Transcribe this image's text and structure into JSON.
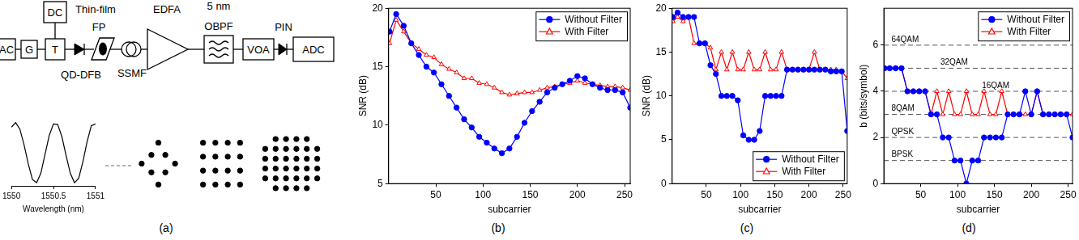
{
  "chart_data": [
    {
      "type": "line",
      "x_label": "Wavelength (nm)",
      "x": [
        1550,
        1550.05,
        1550.1,
        1550.15,
        1550.2,
        1550.25,
        1550.3,
        1550.35,
        1550.4,
        1550.45,
        1550.5,
        1550.55,
        1550.6,
        1550.65,
        1550.7,
        1550.75,
        1550.8,
        1550.85,
        1550.9,
        1550.95,
        1551
      ],
      "values": [
        0.93,
        1.0,
        0.9,
        0.65,
        0.35,
        0.1,
        0.05,
        0.2,
        0.5,
        0.8,
        0.98,
        0.97,
        0.78,
        0.48,
        0.2,
        0.05,
        0.12,
        0.38,
        0.7,
        0.95,
        0.98
      ],
      "color": "#000000",
      "xlim": [
        1550,
        1551
      ],
      "xticks": [
        1550,
        1550.5,
        1551
      ],
      "ylim": [
        0,
        1.1
      ],
      "grid": false,
      "tick_labels": "x"
    },
    {
      "type": "scatter",
      "x": [
        -1,
        1,
        -1,
        1,
        -2.4,
        2.4,
        0,
        0
      ],
      "values": [
        1,
        1,
        -1,
        -1,
        0,
        0,
        2.4,
        -2.4
      ],
      "color": "#000000",
      "marker": "circle",
      "xlim": [
        -3.2,
        3.2
      ],
      "ylim": [
        -3.2,
        3.2
      ],
      "tick_labels": false
    },
    {
      "type": "scatter",
      "x": [
        -3,
        -1,
        1,
        3,
        -3,
        -1,
        1,
        3,
        -3,
        -1,
        1,
        3,
        -3,
        -1,
        1,
        3
      ],
      "values": [
        3,
        3,
        3,
        3,
        1,
        1,
        1,
        1,
        -1,
        -1,
        -1,
        -1,
        -3,
        -3,
        -3,
        -3
      ],
      "color": "#000000",
      "marker": "circle",
      "xlim": [
        -4,
        4
      ],
      "ylim": [
        -4,
        4
      ],
      "tick_labels": false
    },
    {
      "type": "scatter",
      "x": [
        -3,
        -1,
        1,
        3,
        -5,
        -3,
        -1,
        1,
        3,
        5,
        -5,
        -3,
        -1,
        1,
        3,
        5,
        -5,
        -3,
        -1,
        1,
        3,
        5,
        -5,
        -3,
        -1,
        1,
        3,
        5,
        -3,
        -1,
        1,
        3
      ],
      "values": [
        5,
        5,
        5,
        5,
        3,
        3,
        3,
        3,
        3,
        3,
        1,
        1,
        1,
        1,
        1,
        1,
        -1,
        -1,
        -1,
        -1,
        -1,
        -1,
        -3,
        -3,
        -3,
        -3,
        -3,
        -3,
        -5,
        -5,
        -5,
        -5
      ],
      "color": "#000000",
      "marker": "circle",
      "xlim": [
        -6,
        6
      ],
      "ylim": [
        -6,
        6
      ],
      "tick_labels": false
    },
    {
      "type": "line",
      "x_label": "subcarrier",
      "y_label": "SNR (dB)",
      "x": [
        1,
        8,
        16,
        24,
        32,
        40,
        48,
        56,
        64,
        72,
        80,
        88,
        96,
        104,
        112,
        120,
        128,
        136,
        144,
        152,
        160,
        168,
        176,
        184,
        192,
        200,
        208,
        216,
        224,
        232,
        240,
        248,
        256
      ],
      "series": [
        {
          "name": "Without Filter",
          "color": "#0000ff",
          "marker": "circle",
          "values": [
            18,
            19.5,
            18.5,
            17,
            16,
            15,
            14.5,
            13.5,
            12.5,
            11.5,
            10.5,
            9.8,
            9,
            8.5,
            8,
            7.6,
            8,
            9,
            10.2,
            11.2,
            12,
            12.8,
            13.2,
            13.5,
            13.8,
            14.2,
            14,
            13.5,
            13.2,
            13,
            13,
            12.8,
            11.5
          ]
        },
        {
          "name": "With Filter",
          "color": "#ff0000",
          "marker": "triangle-open",
          "values": [
            17,
            19,
            18,
            17,
            16.5,
            16,
            15.8,
            15.2,
            14.8,
            14.5,
            14,
            14,
            13.6,
            13.5,
            13.2,
            12.8,
            12.6,
            12.7,
            12.8,
            12.8,
            13,
            13.2,
            13.3,
            13.5,
            13.6,
            13.8,
            13.6,
            13.5,
            13.4,
            13.3,
            13.3,
            13.2,
            13
          ]
        }
      ],
      "xlim": [
        0,
        256
      ],
      "xticks": [
        50,
        100,
        150,
        200,
        250
      ],
      "ylim": [
        5,
        20
      ],
      "yticks": [
        5,
        10,
        15,
        20
      ],
      "grid": false,
      "legend": "upper right"
    },
    {
      "type": "line",
      "x_label": "subcarrier",
      "y_label": "SNR (dB)",
      "x": [
        1,
        8,
        16,
        24,
        32,
        40,
        48,
        56,
        64,
        72,
        80,
        88,
        96,
        104,
        112,
        120,
        128,
        136,
        144,
        152,
        160,
        168,
        176,
        184,
        192,
        200,
        208,
        216,
        224,
        232,
        240,
        248,
        256
      ],
      "series": [
        {
          "name": "Without Filter",
          "color": "#0000ff",
          "marker": "circle",
          "values": [
            19,
            19.5,
            19,
            19,
            19,
            16,
            16,
            13.5,
            12.5,
            10,
            10,
            10,
            9.5,
            5.5,
            5,
            5,
            6,
            10,
            10,
            10,
            10,
            13,
            13,
            13,
            13,
            13,
            13,
            13,
            13,
            12.8,
            12.8,
            12.8,
            6
          ]
        },
        {
          "name": "With Filter",
          "color": "#ff0000",
          "marker": "triangle-open",
          "values": [
            18.5,
            19,
            18.5,
            19,
            16,
            16,
            16,
            15.5,
            13,
            15,
            13,
            15,
            13,
            13,
            15,
            13,
            13,
            15,
            13,
            13,
            15,
            13,
            13,
            13,
            13,
            13,
            15,
            13,
            13,
            13,
            13,
            12.8,
            12
          ]
        }
      ],
      "xlim": [
        0,
        256
      ],
      "xticks": [
        50,
        100,
        150,
        200,
        250
      ],
      "ylim": [
        0,
        20
      ],
      "yticks": [
        0,
        5,
        10,
        15,
        20
      ],
      "grid": false,
      "legend": "lower right"
    },
    {
      "type": "line",
      "x_label": "subcarrier",
      "y_label": "b (bits/symbol)",
      "x": [
        1,
        8,
        16,
        24,
        32,
        40,
        48,
        56,
        64,
        72,
        80,
        88,
        96,
        104,
        112,
        120,
        128,
        136,
        144,
        152,
        160,
        168,
        176,
        184,
        192,
        200,
        208,
        216,
        224,
        232,
        240,
        248,
        256
      ],
      "series": [
        {
          "name": "Without Filter",
          "color": "#0000ff",
          "marker": "circle",
          "values": [
            5,
            5,
            5,
            5,
            4,
            4,
            4,
            4,
            3,
            3,
            2,
            2,
            1,
            1,
            0,
            1,
            1,
            2,
            2,
            2,
            2,
            3,
            3,
            3,
            4,
            3,
            4,
            3,
            3,
            3,
            3,
            3,
            2
          ]
        },
        {
          "name": "With Filter",
          "color": "#ff0000",
          "marker": "triangle-open",
          "values": [
            5,
            5,
            5,
            5,
            4,
            4,
            4,
            4,
            3,
            4,
            3,
            4,
            3,
            3,
            4,
            3,
            3,
            4,
            3,
            3,
            4,
            3,
            3,
            3,
            3,
            3,
            4,
            3,
            3,
            3,
            3,
            3,
            3
          ]
        }
      ],
      "reference_lines": [
        {
          "value": 6,
          "label": "64QAM"
        },
        {
          "value": 5,
          "label": "32QAM"
        },
        {
          "value": 4,
          "label": "16QAM"
        },
        {
          "value": 3,
          "label": "8QAM"
        },
        {
          "value": 2,
          "label": "QPSK"
        },
        {
          "value": 1,
          "label": "BPSK"
        }
      ],
      "xlim": [
        0,
        256
      ],
      "xticks": [
        50,
        100,
        150,
        200,
        250
      ],
      "ylim": [
        0,
        7.6
      ],
      "yticks": [
        0,
        2,
        4,
        6
      ],
      "grid": false,
      "legend": "upper right"
    }
  ],
  "diagram": {
    "dac": "AC",
    "amplifier": "G",
    "bias_tee": "T",
    "dc_source": "DC",
    "filter_label": [
      "Thin-film",
      "FP"
    ],
    "laser": "QD-DFB",
    "fiber": "SSMF",
    "edfa": "EDFA",
    "obpf_label": [
      "5 nm",
      "OBPF"
    ],
    "voa": "VOA",
    "photodiode": "PIN",
    "adc": "ADC"
  },
  "panel_labels": [
    "(a)",
    "(b)",
    "(c)",
    "(d)"
  ]
}
